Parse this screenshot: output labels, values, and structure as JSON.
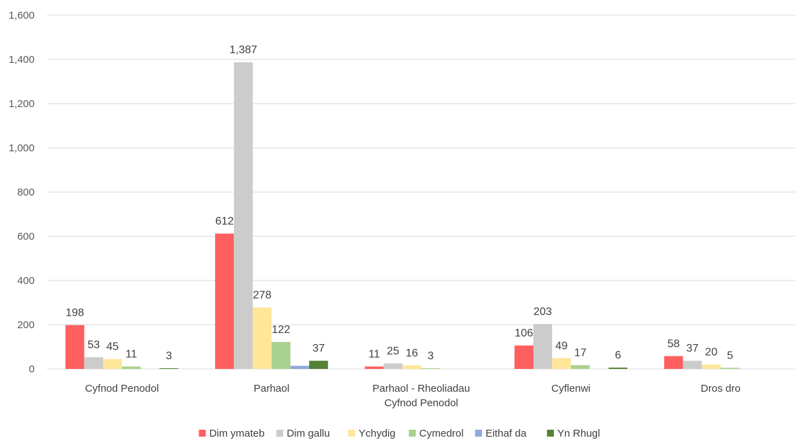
{
  "chart_data": {
    "type": "bar",
    "title": "",
    "xlabel": "",
    "ylabel": "",
    "ylim": [
      0,
      1600
    ],
    "yticks": [
      0,
      200,
      400,
      600,
      800,
      1000,
      1200,
      1400,
      1600
    ],
    "ytick_labels": [
      "0",
      "200",
      "400",
      "600",
      "800",
      "1,000",
      "1,200",
      "1,400",
      "1,600"
    ],
    "grid": true,
    "legend_position": "bottom",
    "categories": [
      [
        "Cyfnod Penodol"
      ],
      [
        "Parhaol"
      ],
      [
        "Parhaol - Rheoliadau",
        "Cyfnod Penodol"
      ],
      [
        "Cyflenwi"
      ],
      [
        "Dros dro"
      ]
    ],
    "series": [
      {
        "name": "Dim ymateb",
        "color": "#ff5f5f",
        "values": [
          198,
          612,
          11,
          106,
          58
        ],
        "labels": [
          "198",
          "612",
          "11",
          "106",
          "58"
        ]
      },
      {
        "name": "Dim gallu",
        "color": "#cccccc",
        "values": [
          53,
          1387,
          25,
          203,
          37
        ],
        "labels": [
          "53",
          "1,387",
          "25",
          "203",
          "37"
        ]
      },
      {
        "name": "Ychydig",
        "color": "#ffe699",
        "values": [
          45,
          278,
          16,
          49,
          20
        ],
        "labels": [
          "45",
          "278",
          "16",
          "49",
          "20"
        ]
      },
      {
        "name": "Cymedrol",
        "color": "#a9d18e",
        "values": [
          11,
          122,
          3,
          17,
          5
        ],
        "labels": [
          "11",
          "122",
          "3",
          "17",
          "5"
        ]
      },
      {
        "name": "Eithaf da",
        "color": "#8faadc",
        "values": [
          0,
          14,
          0,
          0,
          0
        ],
        "labels": [
          "",
          "",
          "",
          "",
          ""
        ]
      },
      {
        "name": "Yn Rhugl",
        "color": "#548235",
        "values": [
          3,
          37,
          0,
          6,
          0
        ],
        "labels": [
          "3",
          "37",
          "",
          "6",
          ""
        ]
      }
    ]
  }
}
